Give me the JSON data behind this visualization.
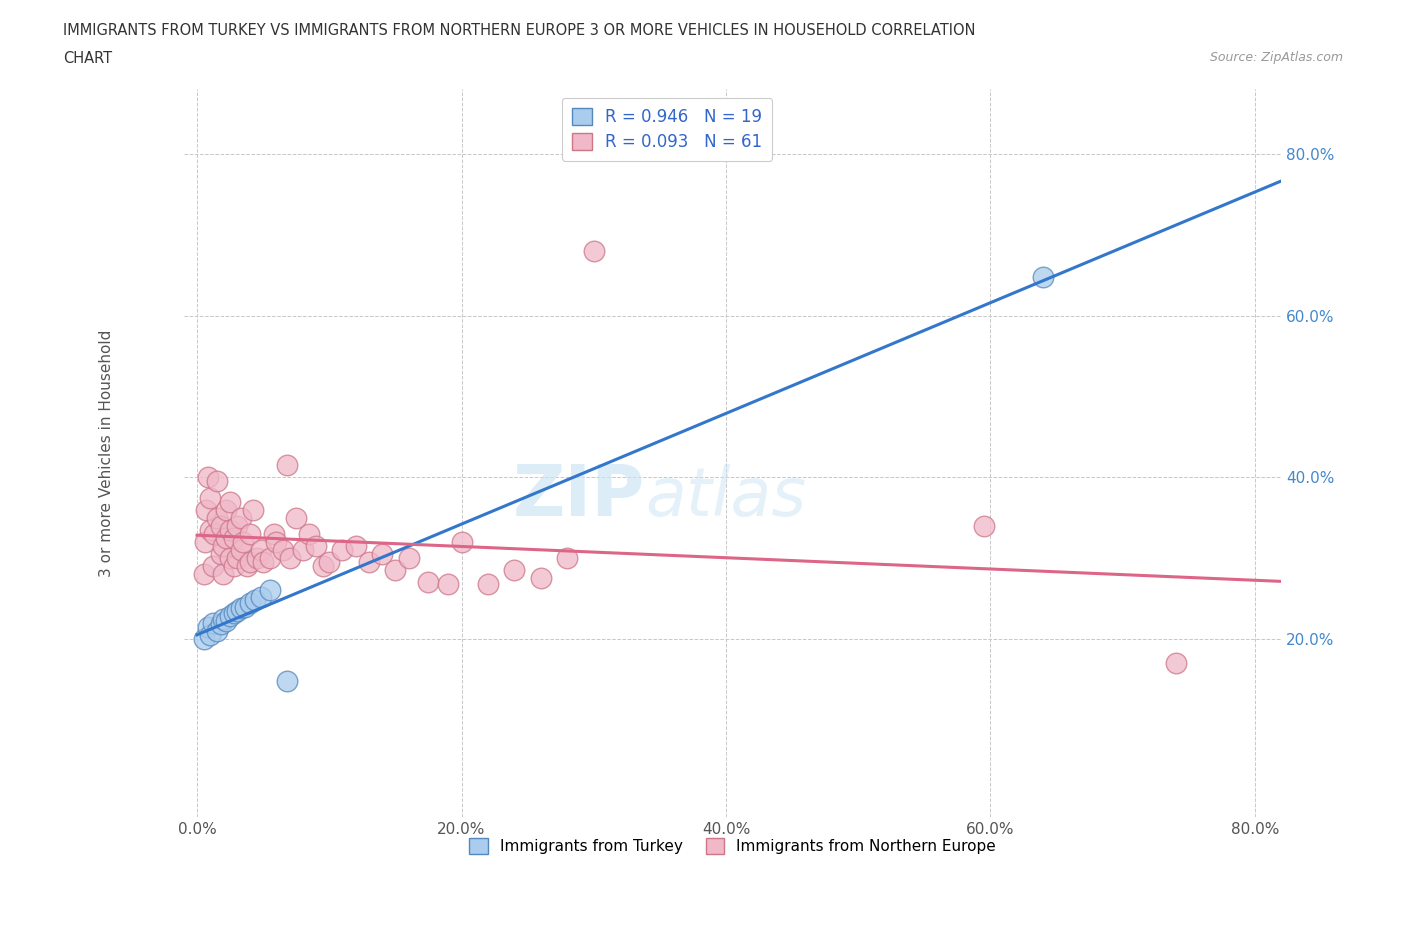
{
  "title_line1": "IMMIGRANTS FROM TURKEY VS IMMIGRANTS FROM NORTHERN EUROPE 3 OR MORE VEHICLES IN HOUSEHOLD CORRELATION",
  "title_line2": "CHART",
  "source": "Source: ZipAtlas.com",
  "ylabel": "3 or more Vehicles in Household",
  "xlim": [
    -0.01,
    0.82
  ],
  "ylim": [
    -0.02,
    0.88
  ],
  "x_ticks": [
    0.0,
    0.2,
    0.4,
    0.6,
    0.8
  ],
  "y_ticks": [
    0.2,
    0.4,
    0.6,
    0.8
  ],
  "x_tick_labels": [
    "0.0%",
    "20.0%",
    "40.0%",
    "60.0%",
    "80.0%"
  ],
  "y_tick_labels": [
    "20.0%",
    "40.0%",
    "60.0%",
    "80.0%"
  ],
  "watermark_zip": "ZIP",
  "watermark_atlas": "atlas",
  "turkey_color": "#aaccee",
  "turkey_edge": "#5588bb",
  "northern_color": "#f0b8c8",
  "northern_edge": "#cc7788",
  "turkey_R": 0.946,
  "turkey_N": 19,
  "northern_R": 0.093,
  "northern_N": 61,
  "turkey_line_color": "#3377cc",
  "northern_line_color": "#dd6688",
  "legend_label_turkey": "Immigrants from Turkey",
  "legend_label_northern": "Immigrants from Northern Europe",
  "turkey_scatter_x": [
    0.005,
    0.008,
    0.01,
    0.012,
    0.015,
    0.018,
    0.02,
    0.022,
    0.025,
    0.028,
    0.03,
    0.033,
    0.036,
    0.04,
    0.044,
    0.048,
    0.055,
    0.068,
    0.64
  ],
  "turkey_scatter_y": [
    0.2,
    0.215,
    0.205,
    0.22,
    0.21,
    0.218,
    0.225,
    0.222,
    0.228,
    0.232,
    0.235,
    0.238,
    0.24,
    0.245,
    0.248,
    0.252,
    0.26,
    0.148,
    0.648
  ],
  "northern_scatter_x": [
    0.005,
    0.006,
    0.007,
    0.008,
    0.01,
    0.01,
    0.012,
    0.013,
    0.015,
    0.015,
    0.018,
    0.018,
    0.02,
    0.02,
    0.022,
    0.022,
    0.025,
    0.025,
    0.025,
    0.028,
    0.028,
    0.03,
    0.03,
    0.033,
    0.033,
    0.035,
    0.038,
    0.04,
    0.04,
    0.042,
    0.045,
    0.048,
    0.05,
    0.055,
    0.058,
    0.06,
    0.065,
    0.068,
    0.07,
    0.075,
    0.08,
    0.085,
    0.09,
    0.095,
    0.1,
    0.11,
    0.12,
    0.13,
    0.14,
    0.15,
    0.16,
    0.175,
    0.19,
    0.2,
    0.22,
    0.24,
    0.26,
    0.28,
    0.3,
    0.595,
    0.74
  ],
  "northern_scatter_y": [
    0.28,
    0.32,
    0.36,
    0.4,
    0.335,
    0.375,
    0.29,
    0.33,
    0.35,
    0.395,
    0.305,
    0.34,
    0.28,
    0.315,
    0.325,
    0.36,
    0.3,
    0.335,
    0.37,
    0.29,
    0.325,
    0.3,
    0.34,
    0.31,
    0.35,
    0.32,
    0.29,
    0.295,
    0.33,
    0.36,
    0.3,
    0.31,
    0.295,
    0.3,
    0.33,
    0.32,
    0.31,
    0.415,
    0.3,
    0.35,
    0.31,
    0.33,
    0.315,
    0.29,
    0.295,
    0.31,
    0.315,
    0.295,
    0.305,
    0.285,
    0.3,
    0.27,
    0.268,
    0.32,
    0.268,
    0.285,
    0.275,
    0.3,
    0.68,
    0.34,
    0.17
  ],
  "grid_color": "#c8c8c8",
  "background_color": "#ffffff",
  "fig_width": 14.06,
  "fig_height": 9.3
}
